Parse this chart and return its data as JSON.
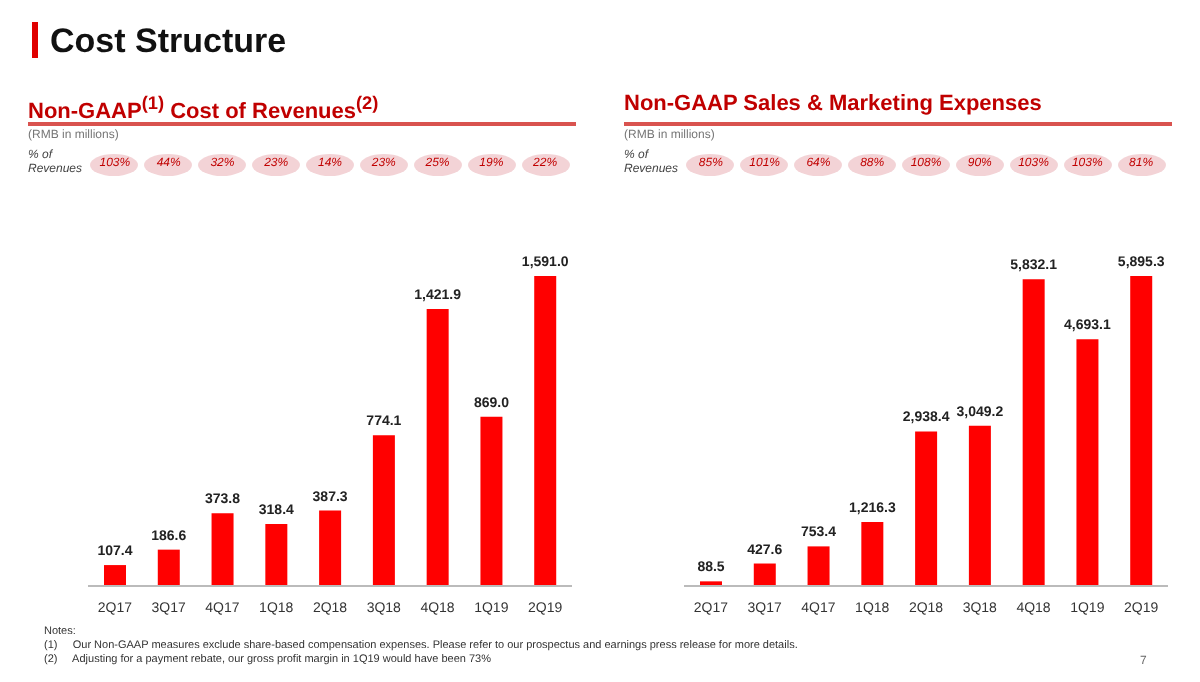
{
  "chart_data": [
    {
      "type": "bar",
      "title": "Non-GAAP$^{(1)}$ Cost of Revenues$^{(2)}$",
      "subtitle": "(RMB in millions)",
      "categories": [
        "2Q17",
        "3Q17",
        "4Q17",
        "1Q18",
        "2Q18",
        "3Q18",
        "4Q18",
        "1Q19",
        "2Q19"
      ],
      "values": [
        107.4,
        186.6,
        373.8,
        318.4,
        387.3,
        774.1,
        1421.9,
        869.0,
        1591.0
      ],
      "value_labels": [
        "107.4",
        "186.6",
        "373.8",
        "318.4",
        "387.3",
        "774.1",
        "1,421.9",
        "869.0",
        "1,591.0"
      ],
      "color": "#ff0000",
      "grid": false,
      "legend": false,
      "annotations": [
        "% of Revenues",
        "103%",
        "44%",
        "32%",
        "23%",
        "14%",
        "23%",
        "25%",
        "19%",
        "22%",
        "Cost Structure",
        "Notes:",
        "(1)     Our Non-GAAP measures exclude share-based compensation expenses. Please refer to our prospectus and earnings press release for more details.",
        "(2)     Adjusting for a payment rebate, our gross profit margin in 1Q19 would have been 73%",
        "7"
      ]
    },
    {
      "type": "bar",
      "title": "Non-GAAP Sales & Marketing Expenses",
      "subtitle": "(RMB in millions)",
      "categories": [
        "2Q17",
        "3Q17",
        "4Q17",
        "1Q18",
        "2Q18",
        "3Q18",
        "4Q18",
        "1Q19",
        "2Q19"
      ],
      "values": [
        88.5,
        427.6,
        753.4,
        1216.3,
        2938.4,
        3049.2,
        5832.1,
        4693.1,
        5895.3
      ],
      "value_labels": [
        "88.5",
        "427.6",
        "753.4",
        "1,216.3",
        "2,938.4",
        "3,049.2",
        "5,832.1",
        "4,693.1",
        "5,895.3"
      ],
      "color": "#ff0000",
      "grid": false,
      "legend": false,
      "annotations": [
        "% of Revenues",
        "85%",
        "101%",
        "64%",
        "88%",
        "108%",
        "90%",
        "103%",
        "103%",
        "81%"
      ]
    }
  ]
}
